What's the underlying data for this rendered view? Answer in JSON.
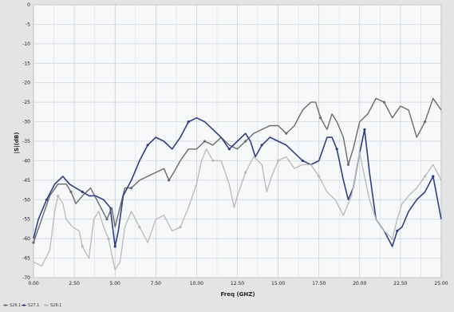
{
  "chart_data": {
    "type": "line",
    "title": "",
    "xlabel": "Freq (GHZ)",
    "ylabel": "|S|(dB)",
    "xlim": [
      0,
      25
    ],
    "ylim": [
      -70,
      0
    ],
    "x_ticks": [
      "0.00",
      "2.50",
      "5.00",
      "7.50",
      "10.00",
      "12.50",
      "15.00",
      "17.50",
      "20.00",
      "22.50",
      "25.00"
    ],
    "y_ticks": [
      "0",
      "-5",
      "-10",
      "-15",
      "-20",
      "-25",
      "-30",
      "-35",
      "-40",
      "-45",
      "-50",
      "-55",
      "-60",
      "-65",
      "-70"
    ],
    "grid": true,
    "legend_position": "bottom-left",
    "series": [
      {
        "name": "S26.1",
        "color": "#6a6a6a",
        "width": 1.4,
        "points": [
          [
            0.0,
            -61
          ],
          [
            0.5,
            -55
          ],
          [
            1.0,
            -49
          ],
          [
            1.5,
            -46
          ],
          [
            2.0,
            -46
          ],
          [
            2.3,
            -48
          ],
          [
            2.6,
            -51
          ],
          [
            3.0,
            -49
          ],
          [
            3.5,
            -47
          ],
          [
            4.0,
            -51
          ],
          [
            4.5,
            -55
          ],
          [
            4.8,
            -52
          ],
          [
            5.0,
            -57
          ],
          [
            5.3,
            -52
          ],
          [
            5.6,
            -47
          ],
          [
            6.0,
            -47
          ],
          [
            6.5,
            -45
          ],
          [
            7.0,
            -44
          ],
          [
            7.5,
            -43
          ],
          [
            8.0,
            -42
          ],
          [
            8.3,
            -45
          ],
          [
            8.6,
            -43
          ],
          [
            9.0,
            -40
          ],
          [
            9.5,
            -37
          ],
          [
            10.0,
            -37
          ],
          [
            10.5,
            -35
          ],
          [
            11.0,
            -36
          ],
          [
            11.5,
            -34
          ],
          [
            12.0,
            -36
          ],
          [
            12.5,
            -37
          ],
          [
            13.0,
            -35
          ],
          [
            13.5,
            -33
          ],
          [
            14.0,
            -32
          ],
          [
            14.5,
            -31
          ],
          [
            15.0,
            -31
          ],
          [
            15.5,
            -33
          ],
          [
            16.0,
            -31
          ],
          [
            16.5,
            -27
          ],
          [
            17.0,
            -25
          ],
          [
            17.3,
            -25
          ],
          [
            17.6,
            -29
          ],
          [
            18.0,
            -32
          ],
          [
            18.3,
            -28
          ],
          [
            18.6,
            -30
          ],
          [
            19.0,
            -34
          ],
          [
            19.3,
            -41
          ],
          [
            19.6,
            -37
          ],
          [
            20.0,
            -30
          ],
          [
            20.5,
            -28
          ],
          [
            21.0,
            -24
          ],
          [
            21.5,
            -25
          ],
          [
            22.0,
            -29
          ],
          [
            22.5,
            -26
          ],
          [
            23.0,
            -27
          ],
          [
            23.5,
            -34
          ],
          [
            24.0,
            -30
          ],
          [
            24.5,
            -24
          ],
          [
            25.0,
            -27
          ]
        ]
      },
      {
        "name": "S27.1",
        "color": "#2f3f86",
        "width": 1.6,
        "points": [
          [
            0.0,
            -60
          ],
          [
            0.3,
            -55
          ],
          [
            0.8,
            -50
          ],
          [
            1.3,
            -46
          ],
          [
            1.8,
            -44
          ],
          [
            2.2,
            -46
          ],
          [
            2.6,
            -47
          ],
          [
            3.0,
            -48
          ],
          [
            3.4,
            -49
          ],
          [
            3.8,
            -49
          ],
          [
            4.3,
            -50
          ],
          [
            4.7,
            -52
          ],
          [
            5.0,
            -62
          ],
          [
            5.2,
            -58
          ],
          [
            5.5,
            -49
          ],
          [
            6.0,
            -45
          ],
          [
            6.5,
            -40
          ],
          [
            7.0,
            -36
          ],
          [
            7.5,
            -34
          ],
          [
            8.0,
            -35
          ],
          [
            8.5,
            -37
          ],
          [
            9.0,
            -34
          ],
          [
            9.5,
            -30
          ],
          [
            10.0,
            -29
          ],
          [
            10.5,
            -30
          ],
          [
            11.0,
            -32
          ],
          [
            11.5,
            -34
          ],
          [
            12.0,
            -37
          ],
          [
            12.5,
            -35
          ],
          [
            13.0,
            -33
          ],
          [
            13.3,
            -35
          ],
          [
            13.6,
            -39
          ],
          [
            14.0,
            -36
          ],
          [
            14.5,
            -34
          ],
          [
            15.0,
            -35
          ],
          [
            15.5,
            -36
          ],
          [
            16.0,
            -38
          ],
          [
            16.5,
            -40
          ],
          [
            17.0,
            -41
          ],
          [
            17.5,
            -40
          ],
          [
            18.0,
            -34
          ],
          [
            18.3,
            -34
          ],
          [
            18.6,
            -37
          ],
          [
            19.0,
            -45
          ],
          [
            19.3,
            -50
          ],
          [
            19.6,
            -47
          ],
          [
            20.0,
            -38
          ],
          [
            20.3,
            -32
          ],
          [
            20.6,
            -43
          ],
          [
            21.0,
            -55
          ],
          [
            21.5,
            -58
          ],
          [
            22.0,
            -62
          ],
          [
            22.3,
            -58
          ],
          [
            22.6,
            -57
          ],
          [
            23.0,
            -53
          ],
          [
            23.5,
            -50
          ],
          [
            24.0,
            -48
          ],
          [
            24.5,
            -44
          ],
          [
            25.0,
            -55
          ]
        ]
      },
      {
        "name": "S28.1",
        "color": "#b8b8b8",
        "width": 1.3,
        "points": [
          [
            0.0,
            -66
          ],
          [
            0.5,
            -67
          ],
          [
            1.0,
            -63
          ],
          [
            1.3,
            -53
          ],
          [
            1.5,
            -49
          ],
          [
            1.8,
            -51
          ],
          [
            2.0,
            -55
          ],
          [
            2.4,
            -57
          ],
          [
            2.8,
            -58
          ],
          [
            3.0,
            -62
          ],
          [
            3.4,
            -65
          ],
          [
            3.7,
            -55
          ],
          [
            4.0,
            -53
          ],
          [
            4.3,
            -57
          ],
          [
            4.6,
            -60
          ],
          [
            5.0,
            -68
          ],
          [
            5.3,
            -66
          ],
          [
            5.6,
            -57
          ],
          [
            6.0,
            -53
          ],
          [
            6.5,
            -57
          ],
          [
            7.0,
            -61
          ],
          [
            7.5,
            -55
          ],
          [
            8.0,
            -54
          ],
          [
            8.5,
            -58
          ],
          [
            9.0,
            -57
          ],
          [
            9.5,
            -52
          ],
          [
            10.0,
            -46
          ],
          [
            10.3,
            -40
          ],
          [
            10.6,
            -37
          ],
          [
            11.0,
            -40
          ],
          [
            11.5,
            -40
          ],
          [
            12.0,
            -46
          ],
          [
            12.3,
            -52
          ],
          [
            12.5,
            -49
          ],
          [
            13.0,
            -43
          ],
          [
            13.5,
            -39
          ],
          [
            14.0,
            -41
          ],
          [
            14.3,
            -48
          ],
          [
            14.6,
            -44
          ],
          [
            15.0,
            -40
          ],
          [
            15.5,
            -39
          ],
          [
            16.0,
            -42
          ],
          [
            16.5,
            -41
          ],
          [
            17.0,
            -41
          ],
          [
            17.5,
            -44
          ],
          [
            18.0,
            -48
          ],
          [
            18.5,
            -50
          ],
          [
            19.0,
            -54
          ],
          [
            19.5,
            -49
          ],
          [
            20.0,
            -38
          ],
          [
            20.3,
            -44
          ],
          [
            20.6,
            -50
          ],
          [
            21.0,
            -55
          ],
          [
            21.5,
            -58
          ],
          [
            22.0,
            -60
          ],
          [
            22.3,
            -55
          ],
          [
            22.6,
            -51
          ],
          [
            23.0,
            -49
          ],
          [
            23.5,
            -47
          ],
          [
            24.0,
            -44
          ],
          [
            24.5,
            -41
          ],
          [
            25.0,
            -45
          ]
        ]
      }
    ]
  }
}
